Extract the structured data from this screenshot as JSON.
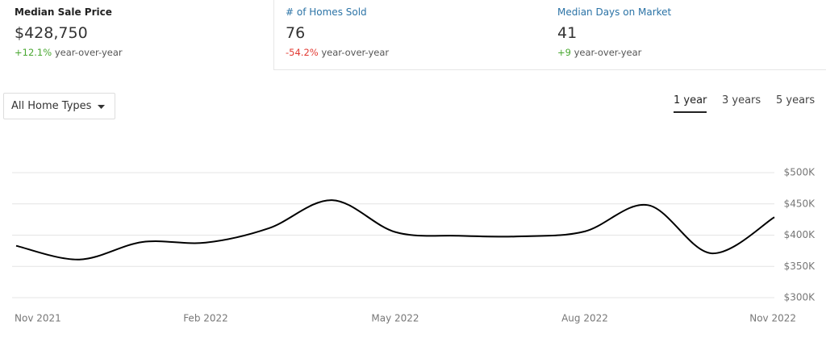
{
  "stats": [
    {
      "label": "Median Sale Price",
      "value": "$428,750",
      "change": "+12.1%",
      "change_text": "year-over-year"
    },
    {
      "label": "# of Homes Sold",
      "value": "76",
      "change": "-54.2%",
      "change_text": "year-over-year"
    },
    {
      "label": "Median Days on Market",
      "value": "41",
      "change": "+9",
      "change_text": "year-over-year"
    }
  ],
  "filter": "All Home Types",
  "ranges": [
    "1 year",
    "3 years",
    "5 years"
  ],
  "chart_data": {
    "type": "line",
    "categories": [
      "Nov 2021",
      null,
      null,
      "Feb 2022",
      null,
      null,
      "May 2022",
      null,
      null,
      "Aug 2022",
      null,
      null,
      "Nov 2022"
    ],
    "series": [
      {
        "name": "Median Sale Price",
        "color": "#000000",
        "values": [
          383000,
          361000,
          389000,
          388000,
          411000,
          456000,
          405000,
          399000,
          398000,
          406000,
          448000,
          371000,
          428750
        ]
      }
    ],
    "ylim": [
      300000,
      500000
    ],
    "yticks": [
      {
        "value": 300000,
        "label": "$300K"
      },
      {
        "value": 350000,
        "label": "$350K"
      },
      {
        "value": 400000,
        "label": "$400K"
      },
      {
        "value": 450000,
        "label": "$450K"
      },
      {
        "value": 500000,
        "label": "$500K"
      }
    ],
    "grid": true
  }
}
